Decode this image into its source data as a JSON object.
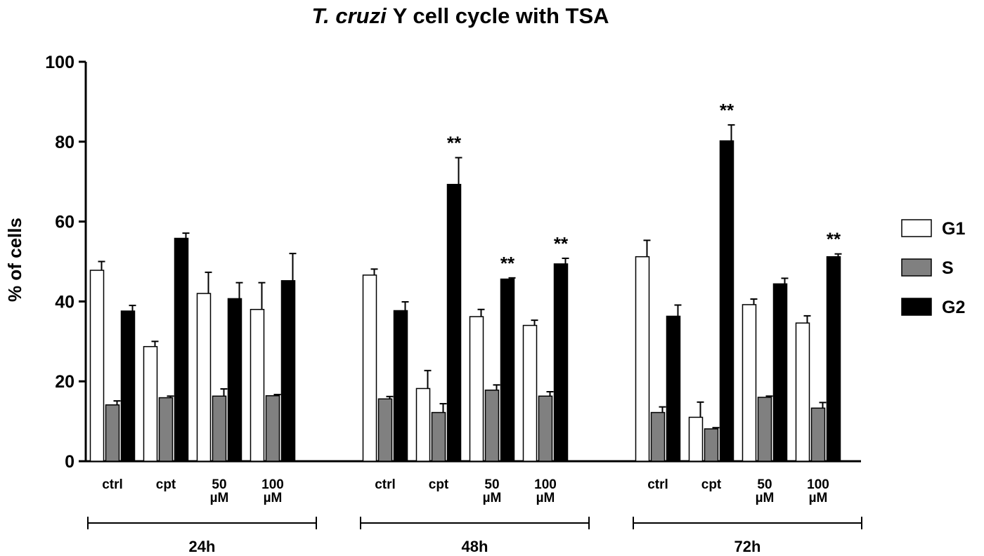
{
  "chart_data": {
    "type": "bar",
    "title_parts": [
      "T. cruzi",
      "Y cell cycle with TSA"
    ],
    "y_label": "% of cells",
    "groups": [
      "24h",
      "48h",
      "72h"
    ],
    "categories": [
      "ctrl",
      "cpt",
      "50 µM",
      "100 µM",
      "ctrl",
      "cpt",
      "50 µM",
      "100 µM",
      "ctrl",
      "cpt",
      "50 µM",
      "100 µM"
    ],
    "series": [
      {
        "name": "G1",
        "color": "#ffffff",
        "values": [
          47.8,
          28.7,
          42,
          38,
          46.6,
          18.2,
          36.2,
          34,
          51.2,
          11,
          39.2,
          34.6
        ],
        "errors": [
          2.2,
          1.3,
          5.3,
          6.7,
          1.5,
          4.5,
          1.8,
          1.3,
          4.1,
          3.8,
          1.4,
          1.8
        ]
      },
      {
        "name": "S",
        "color": "#808080",
        "values": [
          14.1,
          15.9,
          16.3,
          16.4,
          15.6,
          12.2,
          17.8,
          16.3,
          12.2,
          8.1,
          16,
          13.3
        ],
        "errors": [
          1,
          0.4,
          1.8,
          0.3,
          0.6,
          2.2,
          1.3,
          1.1,
          1.4,
          0.3,
          0.3,
          1.4
        ]
      },
      {
        "name": "G2",
        "color": "#000000",
        "values": [
          37.6,
          55.8,
          40.7,
          45.2,
          37.7,
          69.3,
          45.6,
          49.4,
          36.3,
          80.2,
          44.4,
          51.2
        ],
        "errors": [
          1.4,
          1.3,
          4,
          6.8,
          2.2,
          6.7,
          0.3,
          1.4,
          2.8,
          4,
          1.4,
          0.7
        ],
        "annotations": [
          null,
          null,
          null,
          null,
          null,
          "**",
          "**",
          "**",
          null,
          "**",
          null,
          "**"
        ]
      }
    ],
    "ylim": [
      0,
      100
    ],
    "yticks": [
      0,
      20,
      40,
      60,
      80,
      100
    ],
    "legend": "right"
  }
}
